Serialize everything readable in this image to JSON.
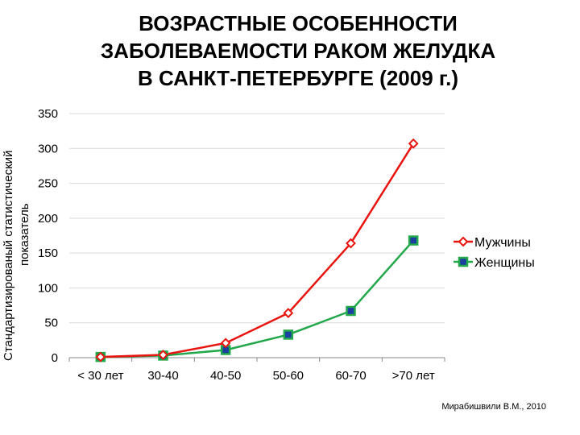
{
  "chart_data": {
    "type": "line",
    "title": [
      "ВОЗРАСТНЫЕ ОСОБЕННОСТИ",
      "ЗАБОЛЕВАЕМОСТИ РАКОМ ЖЕЛУДКА",
      "В САНКТ-ПЕТЕРБУРГЕ (2009 г.)"
    ],
    "ylabel": [
      "Стандартизированый статистический",
      "показатель"
    ],
    "xlabel": "",
    "categories": [
      "< 30 лет",
      "30-40",
      "40-50",
      "50-60",
      "60-70",
      ">70 лет"
    ],
    "ylim": [
      0,
      350
    ],
    "yticks": [
      0,
      50,
      100,
      150,
      200,
      250,
      300,
      350
    ],
    "grid": true,
    "legend_position": "right",
    "series": [
      {
        "name": "Мужчины",
        "values": [
          1,
          4,
          21,
          64,
          164,
          307
        ],
        "color": "#e8140f",
        "marker": "diamond-open"
      },
      {
        "name": "Женщины",
        "values": [
          1,
          3,
          11,
          33,
          67,
          168
        ],
        "color": "#22a84a",
        "marker": "square-filled",
        "marker_fill": "#1a3fa0"
      }
    ]
  },
  "credit": "Мирабишвили В.М., 2010"
}
